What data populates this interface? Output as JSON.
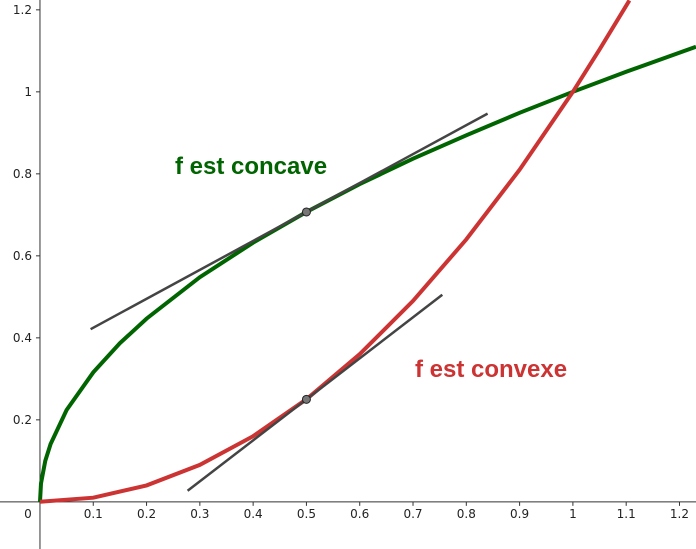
{
  "chart_data": {
    "type": "line",
    "xlim": [
      -0.075,
      1.231
    ],
    "ylim": [
      -0.115,
      1.224
    ],
    "xticks": [
      0,
      0.1,
      0.2,
      0.3,
      0.4,
      0.5,
      0.6,
      0.7,
      0.8,
      0.9,
      1,
      1.1,
      1.2
    ],
    "yticks": [
      0.2,
      0.4,
      0.6,
      0.8,
      1,
      1.2
    ],
    "series": [
      {
        "color": "#006400",
        "width": 4,
        "x": [
          0,
          0.002,
          0.01,
          0.02,
          0.05,
          0.1,
          0.15,
          0.2,
          0.3,
          0.4,
          0.5,
          0.6,
          0.7,
          0.8,
          0.9,
          1,
          1.1,
          1.231
        ],
        "values": [
          0,
          0.045,
          0.1,
          0.141,
          0.224,
          0.316,
          0.387,
          0.447,
          0.548,
          0.632,
          0.707,
          0.775,
          0.837,
          0.894,
          0.949,
          1,
          1.049,
          1.11
        ]
      },
      {
        "color": "#cc3333",
        "width": 4,
        "x": [
          0,
          0.1,
          0.2,
          0.3,
          0.4,
          0.5,
          0.6,
          0.7,
          0.8,
          0.9,
          1,
          1.05,
          1.106
        ],
        "values": [
          0,
          0.01,
          0.04,
          0.09,
          0.16,
          0.25,
          0.36,
          0.49,
          0.64,
          0.81,
          1,
          1.103,
          1.223
        ]
      },
      {
        "color": "#444444",
        "width": 2.5,
        "x": [
          0.095,
          0.84
        ],
        "values": [
          0.421,
          0.947
        ]
      },
      {
        "color": "#444444",
        "width": 2.5,
        "x": [
          0.277,
          0.755
        ],
        "values": [
          0.027,
          0.505
        ]
      }
    ],
    "points": [
      {
        "x": 0.5,
        "y": 0.707
      },
      {
        "x": 0.5,
        "y": 0.25
      }
    ],
    "annotations": [
      {
        "text": "f est concave",
        "color": "#006400"
      },
      {
        "text": "f est convexe",
        "color": "#cc3333"
      }
    ]
  }
}
